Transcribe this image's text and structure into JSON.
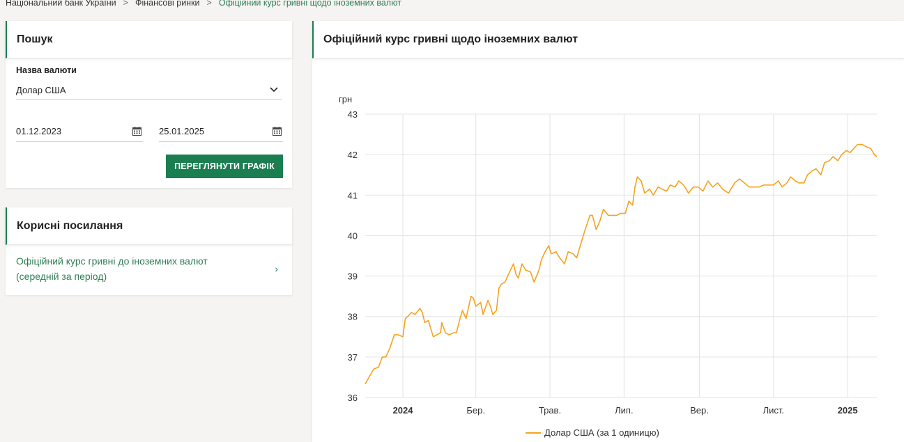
{
  "breadcrumb": {
    "items": [
      "Національний банк України",
      "Фінансові ринки"
    ],
    "current": "Офіційний курс гривні щодо іноземних валют",
    "separator": ">"
  },
  "search": {
    "title": "Пошук",
    "currency_label": "Назва валюти",
    "currency_value": "Долар США",
    "date_from": "01.12.2023",
    "date_to": "25.01.2025",
    "button_label": "ПЕРЕГЛЯНУТИ ГРАФІК"
  },
  "links": {
    "title": "Корисні посилання",
    "items": [
      {
        "line1": "Офіційний курс гривні до іноземних валют",
        "line2": "(середній за період)",
        "arrow": "›"
      }
    ]
  },
  "chart_card": {
    "title": "Офіційний курс гривні щодо іноземних валют"
  },
  "colors": {
    "accent": "#1b7e51",
    "line": "#f5a31c",
    "link": "#2e7d53"
  },
  "chart_data": {
    "type": "line",
    "ylabel": "грн",
    "ylim": [
      36,
      43
    ],
    "yticks": [
      36,
      37,
      38,
      39,
      40,
      41,
      42,
      43
    ],
    "xlim": [
      "2023-12-01",
      "2025-01-25"
    ],
    "xticks": [
      {
        "date": "2024-01-01",
        "label": "2024",
        "bold": true
      },
      {
        "date": "2024-03-01",
        "label": "Бер.",
        "bold": false
      },
      {
        "date": "2024-05-01",
        "label": "Трав.",
        "bold": false
      },
      {
        "date": "2024-07-01",
        "label": "Лип.",
        "bold": false
      },
      {
        "date": "2024-09-01",
        "label": "Вер.",
        "bold": false
      },
      {
        "date": "2024-11-01",
        "label": "Лист.",
        "bold": false
      },
      {
        "date": "2025-01-01",
        "label": "2025",
        "bold": true
      }
    ],
    "grid": true,
    "legend_position": "bottom",
    "series": [
      {
        "name": "Долар США (за 1 одиницю)",
        "color": "#f5a31c",
        "points": [
          [
            "2023-12-01",
            36.33
          ],
          [
            "2023-12-05",
            36.55
          ],
          [
            "2023-12-08",
            36.7
          ],
          [
            "2023-12-12",
            36.75
          ],
          [
            "2023-12-15",
            37.0
          ],
          [
            "2023-12-18",
            37.0
          ],
          [
            "2023-12-21",
            37.2
          ],
          [
            "2023-12-25",
            37.55
          ],
          [
            "2023-12-28",
            37.55
          ],
          [
            "2024-01-01",
            37.5
          ],
          [
            "2024-01-03",
            37.95
          ],
          [
            "2024-01-05",
            38.0
          ],
          [
            "2024-01-08",
            38.1
          ],
          [
            "2024-01-11",
            38.05
          ],
          [
            "2024-01-15",
            38.2
          ],
          [
            "2024-01-17",
            38.1
          ],
          [
            "2024-01-19",
            37.85
          ],
          [
            "2024-01-22",
            37.9
          ],
          [
            "2024-01-24",
            37.7
          ],
          [
            "2024-01-26",
            37.5
          ],
          [
            "2024-01-29",
            37.55
          ],
          [
            "2024-02-01",
            37.6
          ],
          [
            "2024-02-02",
            37.85
          ],
          [
            "2024-02-05",
            37.6
          ],
          [
            "2024-02-08",
            37.55
          ],
          [
            "2024-02-12",
            37.6
          ],
          [
            "2024-02-14",
            37.6
          ],
          [
            "2024-02-17",
            37.95
          ],
          [
            "2024-02-19",
            38.15
          ],
          [
            "2024-02-22",
            37.95
          ],
          [
            "2024-02-26",
            38.5
          ],
          [
            "2024-02-28",
            38.45
          ],
          [
            "2024-03-01",
            38.25
          ],
          [
            "2024-03-05",
            38.35
          ],
          [
            "2024-03-07",
            38.05
          ],
          [
            "2024-03-11",
            38.4
          ],
          [
            "2024-03-13",
            38.25
          ],
          [
            "2024-03-15",
            38.05
          ],
          [
            "2024-03-18",
            38.15
          ],
          [
            "2024-03-20",
            38.7
          ],
          [
            "2024-03-22",
            38.8
          ],
          [
            "2024-03-25",
            38.85
          ],
          [
            "2024-03-28",
            39.05
          ],
          [
            "2024-04-01",
            39.3
          ],
          [
            "2024-04-03",
            39.05
          ],
          [
            "2024-04-05",
            38.95
          ],
          [
            "2024-04-08",
            39.3
          ],
          [
            "2024-04-11",
            39.15
          ],
          [
            "2024-04-15",
            39.1
          ],
          [
            "2024-04-18",
            38.85
          ],
          [
            "2024-04-22",
            39.15
          ],
          [
            "2024-04-24",
            39.4
          ],
          [
            "2024-04-27",
            39.6
          ],
          [
            "2024-04-30",
            39.75
          ],
          [
            "2024-05-02",
            39.55
          ],
          [
            "2024-05-06",
            39.6
          ],
          [
            "2024-05-09",
            39.45
          ],
          [
            "2024-05-13",
            39.3
          ],
          [
            "2024-05-16",
            39.6
          ],
          [
            "2024-05-20",
            39.55
          ],
          [
            "2024-05-23",
            39.45
          ],
          [
            "2024-05-27",
            39.85
          ],
          [
            "2024-05-30",
            40.15
          ],
          [
            "2024-06-03",
            40.5
          ],
          [
            "2024-06-05",
            40.5
          ],
          [
            "2024-06-08",
            40.15
          ],
          [
            "2024-06-11",
            40.35
          ],
          [
            "2024-06-14",
            40.65
          ],
          [
            "2024-06-18",
            40.5
          ],
          [
            "2024-06-21",
            40.5
          ],
          [
            "2024-06-25",
            40.5
          ],
          [
            "2024-06-28",
            40.55
          ],
          [
            "2024-07-02",
            40.55
          ],
          [
            "2024-07-05",
            40.85
          ],
          [
            "2024-07-08",
            40.75
          ],
          [
            "2024-07-10",
            41.2
          ],
          [
            "2024-07-12",
            41.45
          ],
          [
            "2024-07-15",
            41.35
          ],
          [
            "2024-07-18",
            41.05
          ],
          [
            "2024-07-22",
            41.15
          ],
          [
            "2024-07-25",
            41.0
          ],
          [
            "2024-07-29",
            41.2
          ],
          [
            "2024-08-01",
            41.15
          ],
          [
            "2024-08-05",
            41.1
          ],
          [
            "2024-08-08",
            41.25
          ],
          [
            "2024-08-12",
            41.2
          ],
          [
            "2024-08-15",
            41.35
          ],
          [
            "2024-08-19",
            41.25
          ],
          [
            "2024-08-23",
            41.05
          ],
          [
            "2024-08-27",
            41.2
          ],
          [
            "2024-08-31",
            41.2
          ],
          [
            "2024-09-04",
            41.1
          ],
          [
            "2024-09-08",
            41.35
          ],
          [
            "2024-09-12",
            41.2
          ],
          [
            "2024-09-16",
            41.3
          ],
          [
            "2024-09-20",
            41.15
          ],
          [
            "2024-09-25",
            41.05
          ],
          [
            "2024-09-30",
            41.3
          ],
          [
            "2024-10-04",
            41.4
          ],
          [
            "2024-10-08",
            41.3
          ],
          [
            "2024-10-12",
            41.2
          ],
          [
            "2024-10-16",
            41.2
          ],
          [
            "2024-10-20",
            41.2
          ],
          [
            "2024-10-24",
            41.25
          ],
          [
            "2024-10-28",
            41.25
          ],
          [
            "2024-11-01",
            41.25
          ],
          [
            "2024-11-05",
            41.35
          ],
          [
            "2024-11-08",
            41.2
          ],
          [
            "2024-11-12",
            41.3
          ],
          [
            "2024-11-15",
            41.45
          ],
          [
            "2024-11-19",
            41.35
          ],
          [
            "2024-11-22",
            41.3
          ],
          [
            "2024-11-26",
            41.3
          ],
          [
            "2024-11-29",
            41.5
          ],
          [
            "2024-12-03",
            41.6
          ],
          [
            "2024-12-06",
            41.65
          ],
          [
            "2024-12-10",
            41.5
          ],
          [
            "2024-12-13",
            41.8
          ],
          [
            "2024-12-17",
            41.85
          ],
          [
            "2024-12-20",
            41.95
          ],
          [
            "2024-12-24",
            41.85
          ],
          [
            "2024-12-27",
            42.0
          ],
          [
            "2024-12-31",
            42.1
          ],
          [
            "2025-01-03",
            42.05
          ],
          [
            "2025-01-06",
            42.15
          ],
          [
            "2025-01-09",
            42.25
          ],
          [
            "2025-01-13",
            42.25
          ],
          [
            "2025-01-16",
            42.2
          ],
          [
            "2025-01-20",
            42.15
          ],
          [
            "2025-01-23",
            42.0
          ],
          [
            "2025-01-25",
            41.95
          ]
        ]
      }
    ]
  }
}
